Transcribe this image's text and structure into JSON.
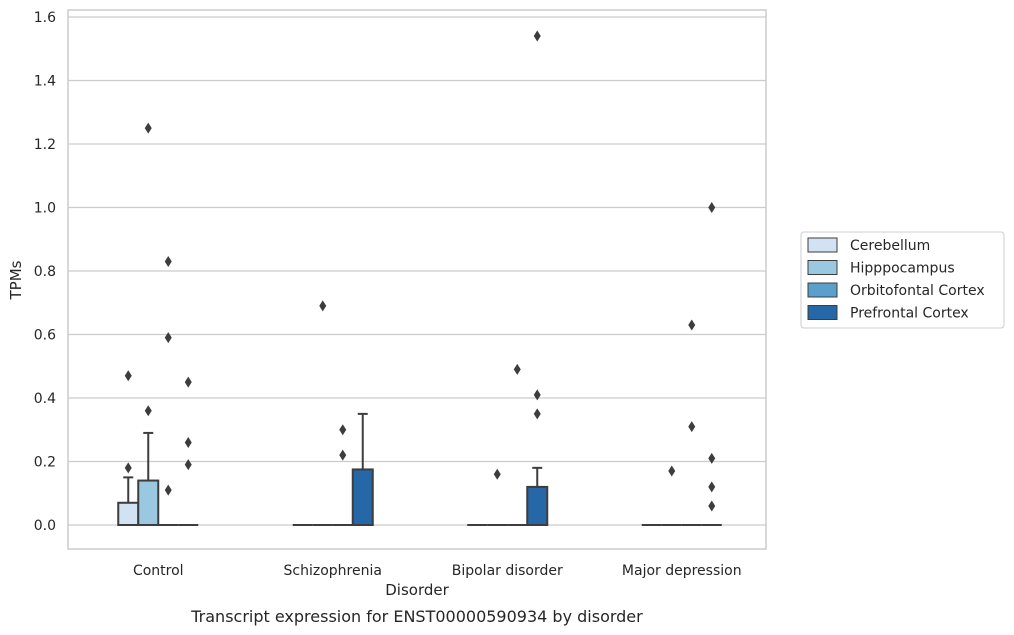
{
  "chart_data": {
    "type": "box",
    "xlabel": "Disorder",
    "ylabel": "TPMs",
    "caption": "Transcript expression for ENST00000590934 by disorder",
    "ylim": [
      -0.075,
      1.62
    ],
    "yticks": [
      0.0,
      0.2,
      0.4,
      0.6,
      0.8,
      1.0,
      1.2,
      1.4,
      1.6
    ],
    "ytick_labels": [
      "0.0",
      "0.2",
      "0.4",
      "0.6",
      "0.8",
      "1.0",
      "1.2",
      "1.4",
      "1.6"
    ],
    "grid": "horizontal",
    "legend_position": "center-right",
    "categories": [
      "Control",
      "Schizophrenia",
      "Bipolar disorder",
      "Major depression"
    ],
    "series": [
      {
        "name": "Cerebellum",
        "color": "#d1e2f2",
        "boxes": [
          {
            "q1": 0.0,
            "median": 0.0,
            "q3": 0.07,
            "whisker_low": 0.0,
            "whisker_high": 0.15,
            "outliers": [
              0.18,
              0.47
            ]
          },
          {
            "q1": 0.0,
            "median": 0.0,
            "q3": 0.0,
            "whisker_low": 0.0,
            "whisker_high": 0.0,
            "outliers": []
          },
          {
            "q1": 0.0,
            "median": 0.0,
            "q3": 0.0,
            "whisker_low": 0.0,
            "whisker_high": 0.0,
            "outliers": []
          },
          {
            "q1": 0.0,
            "median": 0.0,
            "q3": 0.0,
            "whisker_low": 0.0,
            "whisker_high": 0.0,
            "outliers": []
          }
        ]
      },
      {
        "name": "Hipppocampus",
        "color": "#9ac8e0",
        "boxes": [
          {
            "q1": 0.0,
            "median": 0.0,
            "q3": 0.14,
            "whisker_low": 0.0,
            "whisker_high": 0.29,
            "outliers": [
              0.36,
              1.25
            ]
          },
          {
            "q1": 0.0,
            "median": 0.0,
            "q3": 0.0,
            "whisker_low": 0.0,
            "whisker_high": 0.0,
            "outliers": [
              0.69
            ]
          },
          {
            "q1": 0.0,
            "median": 0.0,
            "q3": 0.0,
            "whisker_low": 0.0,
            "whisker_high": 0.0,
            "outliers": [
              0.16
            ]
          },
          {
            "q1": 0.0,
            "median": 0.0,
            "q3": 0.0,
            "whisker_low": 0.0,
            "whisker_high": 0.0,
            "outliers": [
              0.17
            ]
          }
        ]
      },
      {
        "name": "Orbitofontal Cortex",
        "color": "#5b9fcc",
        "boxes": [
          {
            "q1": 0.0,
            "median": 0.0,
            "q3": 0.0,
            "whisker_low": 0.0,
            "whisker_high": 0.0,
            "outliers": [
              0.11,
              0.59,
              0.83
            ]
          },
          {
            "q1": 0.0,
            "median": 0.0,
            "q3": 0.0,
            "whisker_low": 0.0,
            "whisker_high": 0.0,
            "outliers": [
              0.22,
              0.3
            ]
          },
          {
            "q1": 0.0,
            "median": 0.0,
            "q3": 0.0,
            "whisker_low": 0.0,
            "whisker_high": 0.0,
            "outliers": [
              0.49
            ]
          },
          {
            "q1": 0.0,
            "median": 0.0,
            "q3": 0.0,
            "whisker_low": 0.0,
            "whisker_high": 0.0,
            "outliers": [
              0.31,
              0.63
            ]
          }
        ]
      },
      {
        "name": "Prefrontal Cortex",
        "color": "#2667a8",
        "boxes": [
          {
            "q1": 0.0,
            "median": 0.0,
            "q3": 0.0,
            "whisker_low": 0.0,
            "whisker_high": 0.0,
            "outliers": [
              0.19,
              0.26,
              0.45
            ]
          },
          {
            "q1": 0.0,
            "median": 0.0,
            "q3": 0.175,
            "whisker_low": 0.0,
            "whisker_high": 0.35,
            "outliers": []
          },
          {
            "q1": 0.0,
            "median": 0.0,
            "q3": 0.12,
            "whisker_low": 0.0,
            "whisker_high": 0.18,
            "outliers": [
              0.35,
              0.41,
              1.54
            ]
          },
          {
            "q1": 0.0,
            "median": 0.0,
            "q3": 0.0,
            "whisker_low": 0.0,
            "whisker_high": 0.0,
            "outliers": [
              0.06,
              0.12,
              0.21,
              1.0
            ]
          }
        ]
      }
    ]
  }
}
